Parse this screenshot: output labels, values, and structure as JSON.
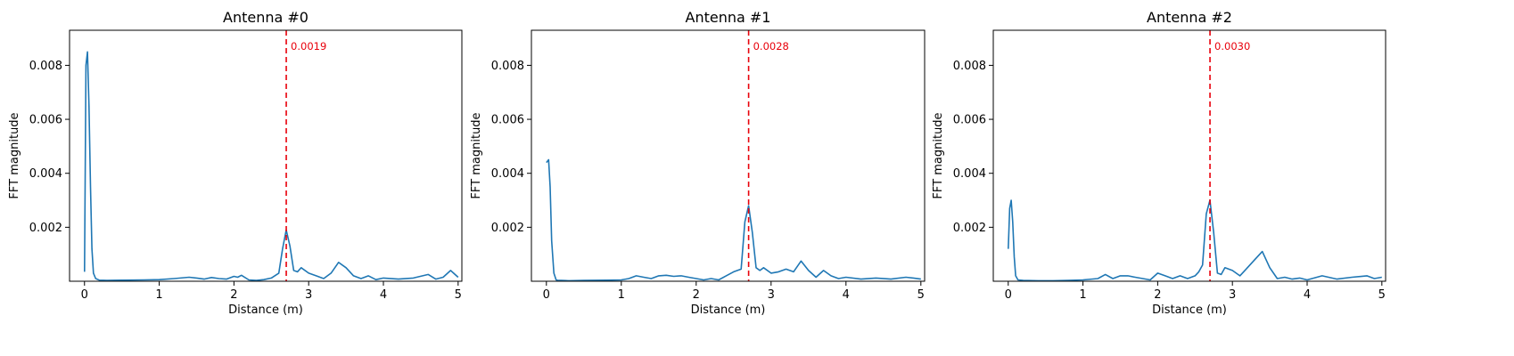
{
  "chart_data": [
    {
      "type": "line",
      "title": "Antenna #0",
      "xlabel": "Distance (m)",
      "ylabel": "FFT magnitude",
      "xlim": [
        -0.2,
        5.05
      ],
      "ylim": [
        0.0,
        0.0093
      ],
      "xticks": [
        "0",
        "1",
        "2",
        "3",
        "4",
        "5"
      ],
      "yticks": [
        "0.002",
        "0.004",
        "0.006",
        "0.008"
      ],
      "marker_x": 2.7,
      "marker_label": "0.0019",
      "marker_color": "#e8000b",
      "line_color": "#1f77b4",
      "grid": false,
      "series": [
        {
          "x": [
            0.0,
            0.02,
            0.04,
            0.06,
            0.08,
            0.1,
            0.12,
            0.15,
            0.2,
            0.3,
            0.5,
            0.8,
            1.0,
            1.2,
            1.4,
            1.5,
            1.6,
            1.7,
            1.8,
            1.9,
            2.0,
            2.05,
            2.1,
            2.2,
            2.3,
            2.4,
            2.5,
            2.6,
            2.65,
            2.7,
            2.75,
            2.8,
            2.85,
            2.9,
            3.0,
            3.1,
            3.2,
            3.3,
            3.4,
            3.5,
            3.6,
            3.7,
            3.8,
            3.9,
            4.0,
            4.2,
            4.4,
            4.6,
            4.7,
            4.8,
            4.9,
            5.0
          ],
          "y": [
            0.00035,
            0.008,
            0.0085,
            0.0065,
            0.0035,
            0.0012,
            0.0003,
            0.0001,
            4e-05,
            3e-05,
            4e-05,
            5e-05,
            6e-05,
            0.0001,
            0.00015,
            0.00012,
            8e-05,
            0.00014,
            0.0001,
            8e-05,
            0.00018,
            0.00015,
            0.00022,
            5e-05,
            3e-05,
            6e-05,
            0.00012,
            0.0003,
            0.0012,
            0.0019,
            0.0013,
            0.0004,
            0.00035,
            0.0005,
            0.0003,
            0.0002,
            0.0001,
            0.0003,
            0.0007,
            0.0005,
            0.0002,
            0.0001,
            0.0002,
            6e-05,
            0.00012,
            8e-05,
            0.00012,
            0.00025,
            8e-05,
            0.00015,
            0.0004,
            0.00015
          ]
        }
      ]
    },
    {
      "type": "line",
      "title": "Antenna #1",
      "xlabel": "Distance (m)",
      "ylabel": "FFT magnitude",
      "xlim": [
        -0.2,
        5.05
      ],
      "ylim": [
        0.0,
        0.0093
      ],
      "xticks": [
        "0",
        "1",
        "2",
        "3",
        "4",
        "5"
      ],
      "yticks": [
        "0.002",
        "0.004",
        "0.006",
        "0.008"
      ],
      "marker_x": 2.7,
      "marker_label": "0.0028",
      "marker_color": "#e8000b",
      "line_color": "#1f77b4",
      "grid": false,
      "series": [
        {
          "x": [
            0.0,
            0.03,
            0.05,
            0.07,
            0.1,
            0.13,
            0.16,
            0.2,
            0.3,
            0.5,
            0.8,
            1.0,
            1.1,
            1.2,
            1.3,
            1.4,
            1.5,
            1.6,
            1.7,
            1.8,
            1.9,
            2.0,
            2.1,
            2.2,
            2.3,
            2.4,
            2.5,
            2.6,
            2.65,
            2.7,
            2.75,
            2.8,
            2.85,
            2.9,
            3.0,
            3.1,
            3.2,
            3.3,
            3.4,
            3.5,
            3.6,
            3.7,
            3.8,
            3.9,
            4.0,
            4.2,
            4.4,
            4.6,
            4.8,
            4.9,
            5.0
          ],
          "y": [
            0.0044,
            0.0045,
            0.0035,
            0.0015,
            0.0003,
            5e-05,
            3e-05,
            3e-05,
            2e-05,
            3e-05,
            4e-05,
            5e-05,
            0.0001,
            0.0002,
            0.00015,
            0.0001,
            0.0002,
            0.00022,
            0.00018,
            0.0002,
            0.00015,
            0.0001,
            5e-05,
            0.0001,
            5e-05,
            0.0002,
            0.00035,
            0.00045,
            0.0022,
            0.0028,
            0.0018,
            0.0005,
            0.0004,
            0.0005,
            0.0003,
            0.00035,
            0.00045,
            0.00035,
            0.00075,
            0.0004,
            0.00015,
            0.0004,
            0.0002,
            0.0001,
            0.00015,
            8e-05,
            0.00012,
            8e-05,
            0.00015,
            0.00012,
            8e-05
          ]
        }
      ]
    },
    {
      "type": "line",
      "title": "Antenna #2",
      "xlabel": "Distance (m)",
      "ylabel": "FFT magnitude",
      "xlim": [
        -0.2,
        5.05
      ],
      "ylim": [
        0.0,
        0.0093
      ],
      "xticks": [
        "0",
        "1",
        "2",
        "3",
        "4",
        "5"
      ],
      "yticks": [
        "0.002",
        "0.004",
        "0.006",
        "0.008"
      ],
      "marker_x": 2.7,
      "marker_label": "0.0030",
      "marker_color": "#e8000b",
      "line_color": "#1f77b4",
      "grid": false,
      "series": [
        {
          "x": [
            0.0,
            0.02,
            0.04,
            0.06,
            0.08,
            0.1,
            0.13,
            0.2,
            0.4,
            0.6,
            0.8,
            1.0,
            1.2,
            1.3,
            1.4,
            1.5,
            1.6,
            1.7,
            1.8,
            1.9,
            2.0,
            2.1,
            2.2,
            2.3,
            2.4,
            2.5,
            2.55,
            2.6,
            2.65,
            2.7,
            2.75,
            2.8,
            2.85,
            2.9,
            3.0,
            3.1,
            3.2,
            3.3,
            3.4,
            3.5,
            3.6,
            3.7,
            3.8,
            3.9,
            4.0,
            4.2,
            4.4,
            4.6,
            4.8,
            4.9,
            5.0
          ],
          "y": [
            0.0012,
            0.0027,
            0.003,
            0.0022,
            0.0009,
            0.0002,
            5e-05,
            3e-05,
            2e-05,
            2e-05,
            3e-05,
            5e-05,
            0.0001,
            0.00025,
            0.0001,
            0.0002,
            0.0002,
            0.00015,
            0.0001,
            5e-05,
            0.0003,
            0.0002,
            0.0001,
            0.0002,
            0.0001,
            0.0002,
            0.00035,
            0.0006,
            0.0025,
            0.003,
            0.0018,
            0.0003,
            0.00025,
            0.0005,
            0.0004,
            0.0002,
            0.0005,
            0.0008,
            0.0011,
            0.0005,
            0.0001,
            0.00015,
            8e-05,
            0.00012,
            5e-05,
            0.0002,
            8e-05,
            0.00015,
            0.0002,
            0.0001,
            0.00015
          ]
        }
      ]
    }
  ]
}
